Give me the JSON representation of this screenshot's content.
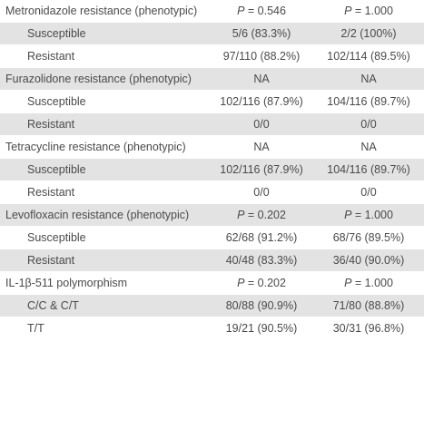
{
  "rows": [
    {
      "label": "Metronidazole resistance (phenotypic)",
      "col2": "P = 0.546",
      "col3": "P = 1.000",
      "sub": false,
      "shade": false
    },
    {
      "label": "Susceptible",
      "col2": "5/6 (83.3%)",
      "col3": "2/2 (100%)",
      "sub": true,
      "shade": true
    },
    {
      "label": "Resistant",
      "col2": "97/110 (88.2%)",
      "col3": "102/114 (89.5%)",
      "sub": true,
      "shade": false
    },
    {
      "label": "Furazolidone resistance (phenotypic)",
      "col2": "NA",
      "col3": "NA",
      "sub": false,
      "shade": true
    },
    {
      "label": "Susceptible",
      "col2": "102/116 (87.9%)",
      "col3": "104/116 (89.7%)",
      "sub": true,
      "shade": false
    },
    {
      "label": "Resistant",
      "col2": "0/0",
      "col3": "0/0",
      "sub": true,
      "shade": true
    },
    {
      "label": "Tetracycline resistance (phenotypic)",
      "col2": "NA",
      "col3": "NA",
      "sub": false,
      "shade": false
    },
    {
      "label": "Susceptible",
      "col2": "102/116 (87.9%)",
      "col3": "104/116 (89.7%)",
      "sub": true,
      "shade": true
    },
    {
      "label": "Resistant",
      "col2": "0/0",
      "col3": "0/0",
      "sub": true,
      "shade": false
    },
    {
      "label": "Levofloxacin resistance (phenotypic)",
      "col2": "P = 0.202",
      "col3": "P = 1.000",
      "sub": false,
      "shade": true
    },
    {
      "label": "Susceptible",
      "col2": "62/68 (91.2%)",
      "col3": "68/76 (89.5%)",
      "sub": true,
      "shade": false
    },
    {
      "label": "Resistant",
      "col2": "40/48 (83.3%)",
      "col3": "36/40 (90.0%)",
      "sub": true,
      "shade": true
    },
    {
      "label": "IL-1β-511 polymorphism",
      "col2": "P = 0.202",
      "col3": "P = 1.000",
      "sub": false,
      "shade": false
    },
    {
      "label": "C/C & C/T",
      "col2": "80/88 (90.9%)",
      "col3": "71/80 (88.8%)",
      "sub": true,
      "shade": true
    },
    {
      "label": "T/T",
      "col2": "19/21 (90.5%)",
      "col3": "30/31 (96.8%)",
      "sub": true,
      "shade": false
    }
  ]
}
